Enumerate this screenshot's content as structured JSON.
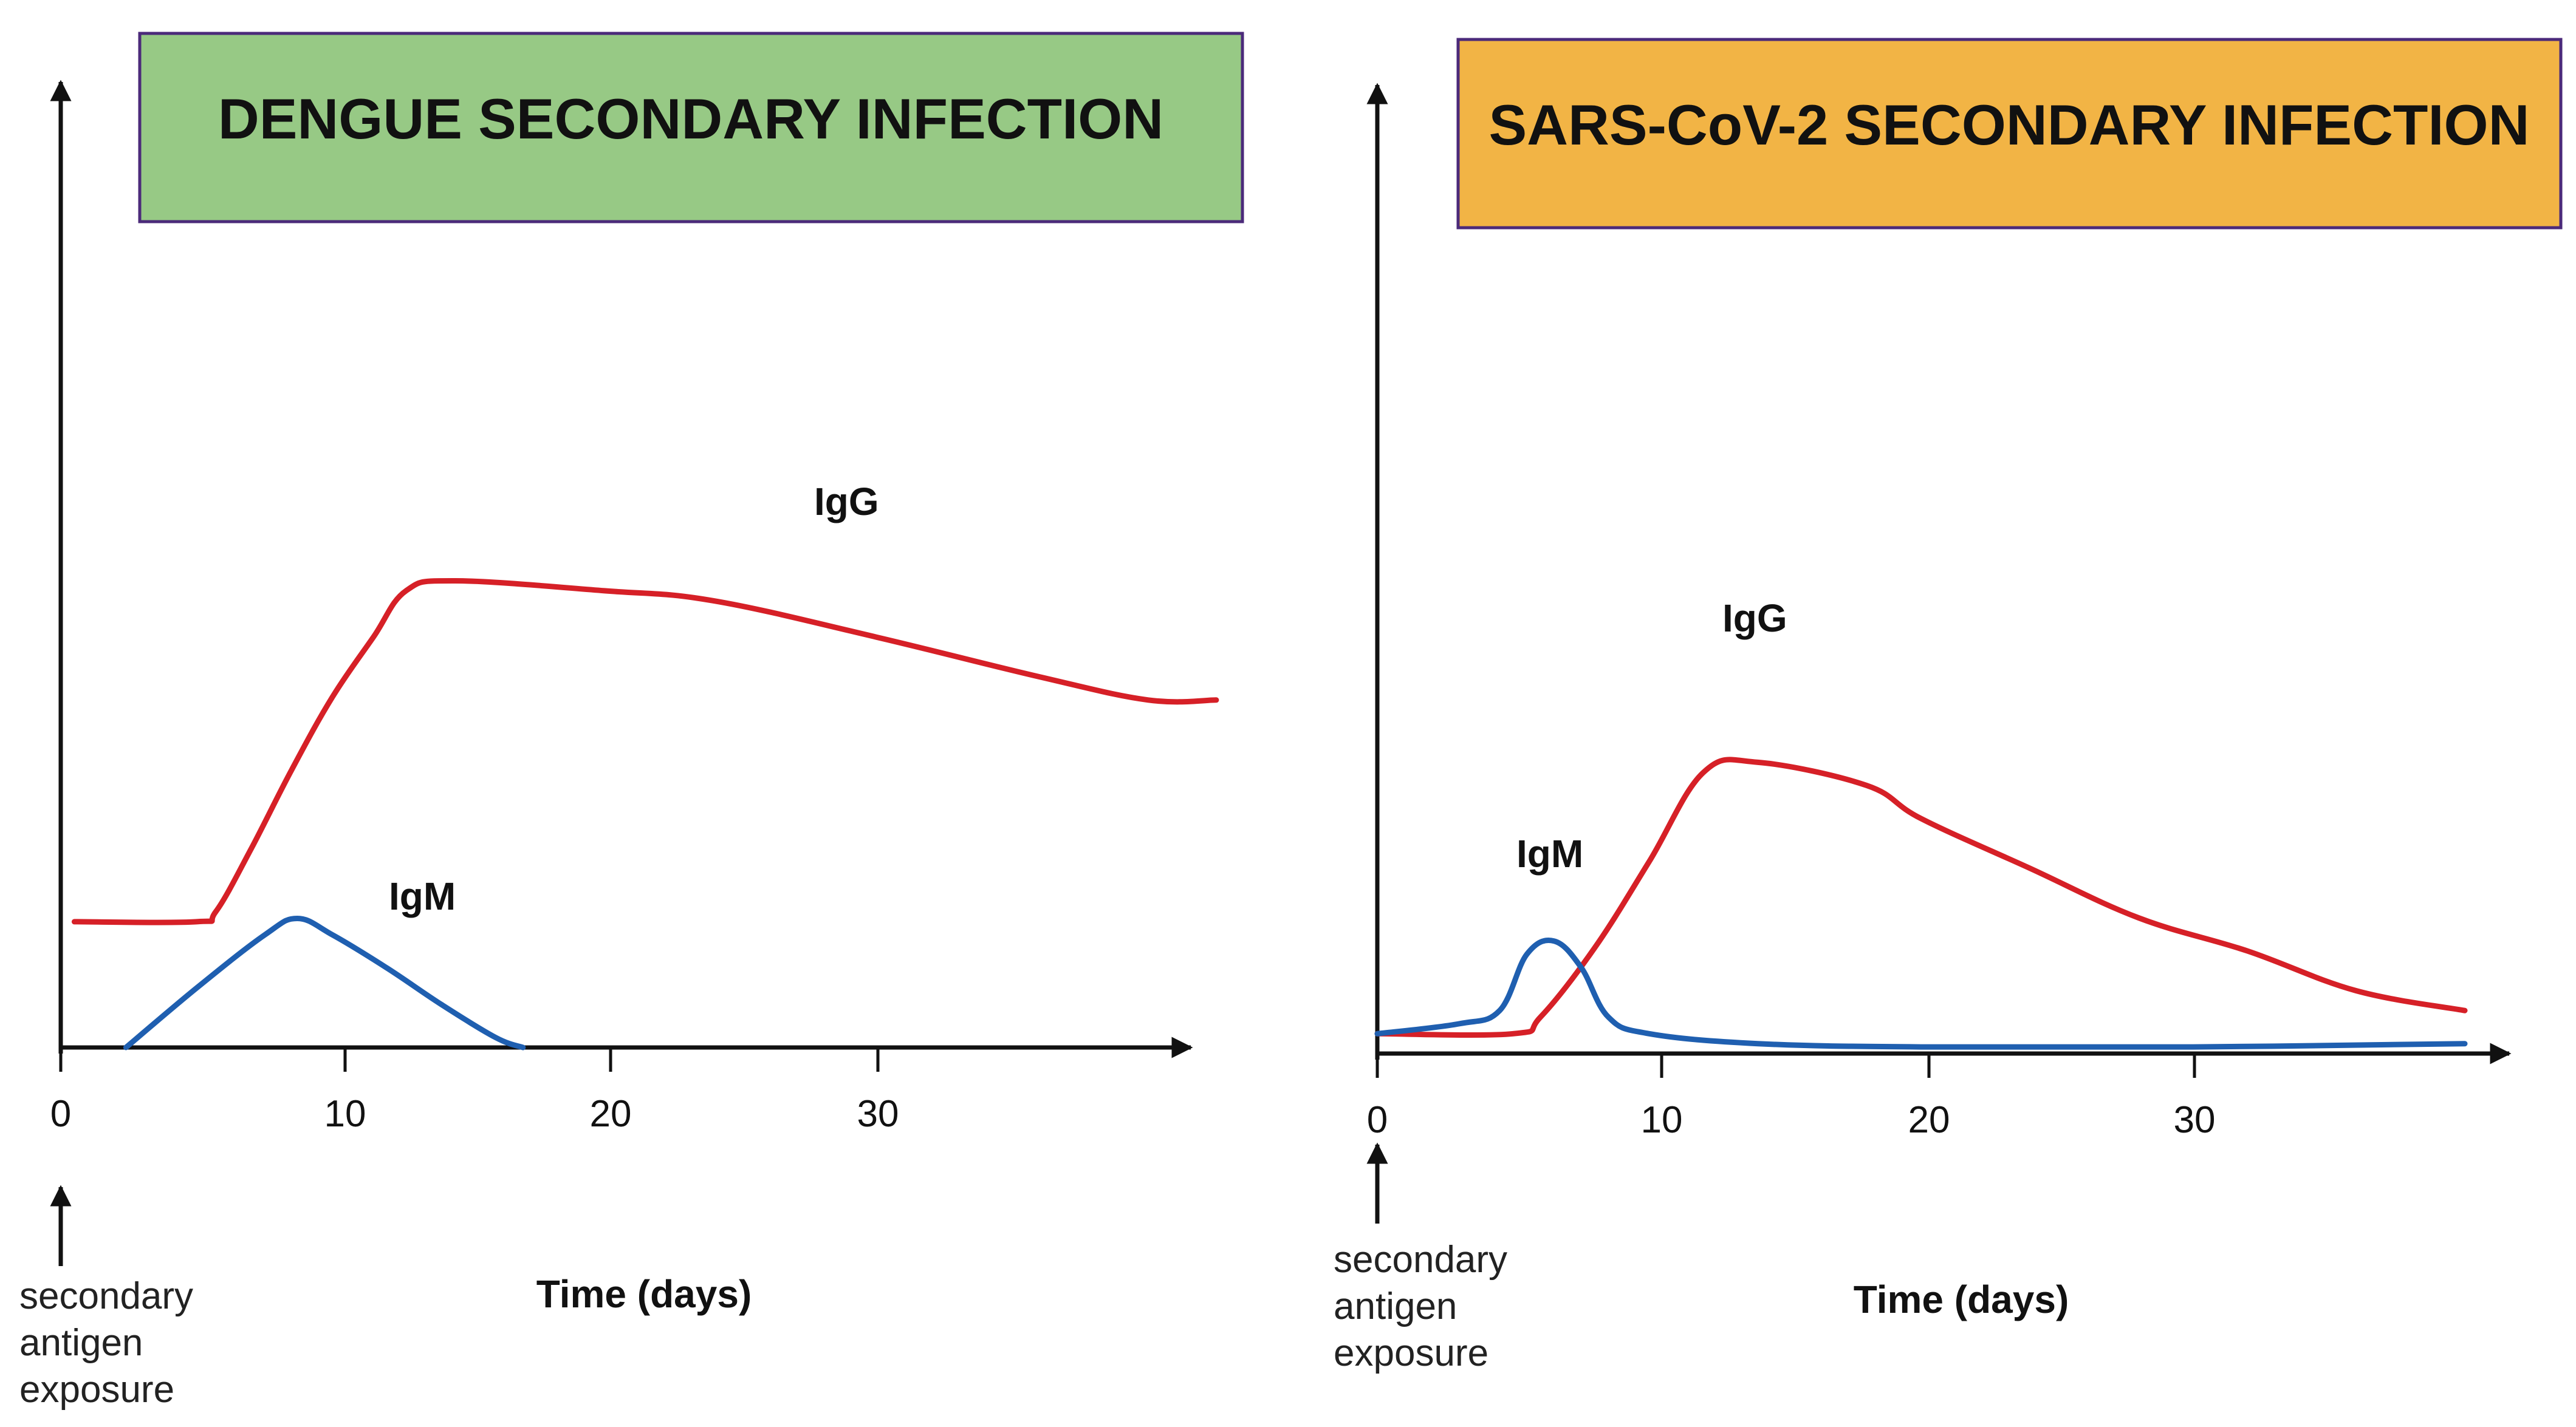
{
  "chart_data": [
    {
      "type": "line",
      "title": "DENGUE SECONDARY INFECTION",
      "title_color": "#97c985",
      "title_border": "#4b2a7a",
      "xlabel": "Time (days)",
      "ylabel": "",
      "xlim": [
        0,
        43
      ],
      "ylim": [
        0,
        100
      ],
      "x_ticks": [
        "0",
        "10",
        "20",
        "30"
      ],
      "x_tick_values": [
        0,
        10,
        20,
        30
      ],
      "annotation": [
        "secondary",
        "antigen",
        "exposure"
      ],
      "series": [
        {
          "name": "IgG",
          "color": "#d62027",
          "x": [
            0.5,
            5,
            5.7,
            7,
            8.5,
            10,
            11.5,
            12.7,
            14.5,
            20,
            24,
            30,
            36,
            40,
            42.5
          ],
          "y": [
            19,
            19,
            20.5,
            30,
            42,
            53,
            62,
            69,
            70.5,
            69,
            67.5,
            62,
            56,
            52.5,
            52.5
          ]
        },
        {
          "name": "IgM",
          "color": "#1f5fb0",
          "x": [
            2.4,
            5,
            7.5,
            8.7,
            10,
            12,
            14,
            16,
            17
          ],
          "y": [
            0,
            9,
            17,
            19.5,
            17,
            12,
            6.5,
            1.5,
            0
          ]
        }
      ]
    },
    {
      "type": "line",
      "title": "SARS-CoV-2 SECONDARY INFECTION",
      "title_color": "#f2b445",
      "title_border": "#4b2a7a",
      "xlabel": "Time (days)",
      "ylabel": "",
      "xlim": [
        0,
        43
      ],
      "ylim": [
        0,
        100
      ],
      "x_ticks": [
        "0",
        "10",
        "20",
        "30"
      ],
      "x_tick_values": [
        0,
        10,
        20,
        30
      ],
      "annotation": [
        "secondary",
        "antigen",
        "exposure"
      ],
      "series": [
        {
          "name": "IgG",
          "color": "#d62027",
          "x": [
            0,
            5,
            6,
            8,
            10,
            12,
            14,
            18,
            20,
            24,
            28,
            32,
            36,
            40
          ],
          "y": [
            3,
            3,
            5.5,
            16,
            29,
            42.5,
            44,
            40.5,
            35.5,
            28,
            20.5,
            15.5,
            9.5,
            6.5
          ]
        },
        {
          "name": "IgM",
          "color": "#1f5fb0",
          "x": [
            0,
            3,
            4.5,
            5.5,
            6.5,
            7.5,
            8.5,
            10,
            14,
            20,
            30,
            40
          ],
          "y": [
            3,
            4.5,
            6.5,
            15,
            17,
            13,
            5.5,
            3,
            1.5,
            1,
            1,
            1.5
          ]
        }
      ]
    }
  ]
}
